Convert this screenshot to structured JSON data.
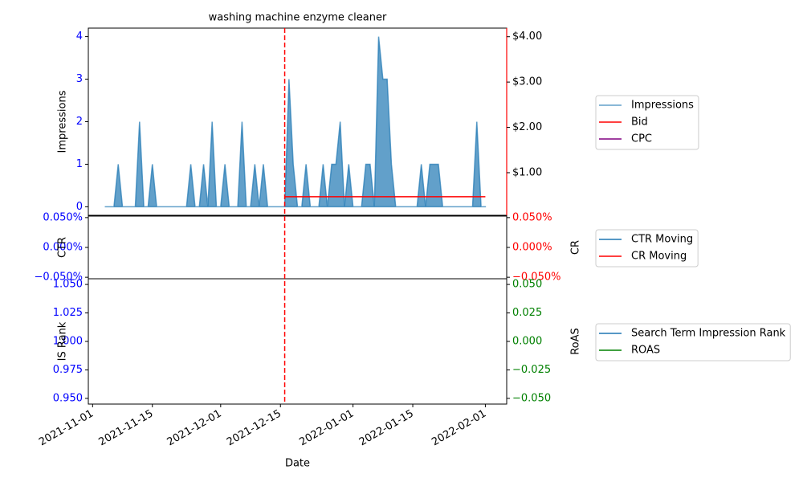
{
  "chart_data": [
    {
      "type": "area",
      "title": "washing machine enzyme cleaner",
      "ylabel": "Impressions",
      "ylim": [
        -0.2,
        4.2
      ],
      "yticks": [
        0,
        1,
        2,
        3,
        4
      ],
      "ytick_color": "blue",
      "y2lim": [
        0.06,
        4.19
      ],
      "y2ticks": [
        {
          "value": 1,
          "label": "$1.00"
        },
        {
          "value": 2,
          "label": "$2.00"
        },
        {
          "value": 3,
          "label": "$3.00"
        },
        {
          "value": 4,
          "label": "$4.00"
        }
      ],
      "y2tick_color": "black",
      "y2_spine_color": "red",
      "legend": "right",
      "series": [
        {
          "name": "Impressions",
          "type": "area",
          "color": "#1f77b4",
          "axis": "y",
          "x": [
            "2021-11-04",
            "2021-11-05",
            "2021-11-06",
            "2021-11-07",
            "2021-11-08",
            "2021-11-09",
            "2021-11-10",
            "2021-11-11",
            "2021-11-12",
            "2021-11-13",
            "2021-11-14",
            "2021-11-15",
            "2021-11-16",
            "2021-11-17",
            "2021-11-18",
            "2021-11-19",
            "2021-11-20",
            "2021-11-21",
            "2021-11-22",
            "2021-11-23",
            "2021-11-24",
            "2021-11-25",
            "2021-11-26",
            "2021-11-27",
            "2021-11-28",
            "2021-11-29",
            "2021-11-30",
            "2021-12-01",
            "2021-12-02",
            "2021-12-03",
            "2021-12-04",
            "2021-12-05",
            "2021-12-06",
            "2021-12-07",
            "2021-12-08",
            "2021-12-09",
            "2021-12-10",
            "2021-12-11",
            "2021-12-12",
            "2021-12-13",
            "2021-12-14",
            "2021-12-15",
            "2021-12-16",
            "2021-12-17",
            "2021-12-18",
            "2021-12-19",
            "2021-12-20",
            "2021-12-21",
            "2021-12-22",
            "2021-12-23",
            "2021-12-24",
            "2021-12-25",
            "2021-12-26",
            "2021-12-27",
            "2021-12-28",
            "2021-12-29",
            "2021-12-30",
            "2021-12-31",
            "2022-01-01",
            "2022-01-02",
            "2022-01-03",
            "2022-01-04",
            "2022-01-05",
            "2022-01-06",
            "2022-01-07",
            "2022-01-08",
            "2022-01-09",
            "2022-01-10",
            "2022-01-11",
            "2022-01-12",
            "2022-01-13",
            "2022-01-14",
            "2022-01-15",
            "2022-01-16",
            "2022-01-17",
            "2022-01-18",
            "2022-01-19",
            "2022-01-20",
            "2022-01-21",
            "2022-01-22",
            "2022-01-23",
            "2022-01-24",
            "2022-01-25",
            "2022-01-26",
            "2022-01-27",
            "2022-01-28",
            "2022-01-29",
            "2022-01-30",
            "2022-01-31",
            "2022-02-01"
          ],
          "values": [
            0,
            0,
            0,
            1,
            0,
            0,
            0,
            0,
            2,
            0,
            0,
            1,
            0,
            0,
            0,
            0,
            0,
            0,
            0,
            0,
            1,
            0,
            0,
            1,
            0,
            2,
            0,
            0,
            1,
            0,
            0,
            0,
            2,
            0,
            0,
            1,
            0,
            1,
            0,
            0,
            0,
            0,
            0,
            3,
            1,
            0,
            0,
            1,
            0,
            0,
            0,
            1,
            0,
            1,
            1,
            2,
            0,
            1,
            0,
            0,
            0,
            1,
            1,
            0,
            4,
            3,
            3,
            1,
            0,
            0,
            0,
            0,
            0,
            0,
            1,
            0,
            1,
            1,
            1,
            0,
            0,
            0,
            0,
            0,
            0,
            0,
            0,
            2,
            0,
            0
          ]
        },
        {
          "name": "Bid",
          "type": "line",
          "color": "red",
          "axis": "y2",
          "x": [
            "2021-12-16",
            "2022-02-01"
          ],
          "values": [
            0.47,
            0.47
          ]
        },
        {
          "name": "CPC",
          "type": "line",
          "color": "purple",
          "axis": "y2",
          "x": [],
          "values": []
        }
      ]
    },
    {
      "type": "line",
      "ylabel": "CTR",
      "y2label": "CR",
      "ylim": [
        -0.0525,
        0.0525
      ],
      "yticks": [
        {
          "value": -0.05,
          "label": "−0.050%"
        },
        {
          "value": 0,
          "label": "0.000%"
        },
        {
          "value": 0.05,
          "label": "0.050%"
        }
      ],
      "ytick_color": "blue",
      "y2lim": [
        -0.0525,
        0.0525
      ],
      "y2ticks": [
        {
          "value": -0.05,
          "label": "−0.050%"
        },
        {
          "value": 0,
          "label": "0.000%"
        },
        {
          "value": 0.05,
          "label": "0.050%"
        }
      ],
      "y2tick_color": "red",
      "legend": "right",
      "series": [
        {
          "name": "CTR Moving",
          "type": "line",
          "color": "#1f77b4",
          "axis": "y",
          "x": [],
          "values": []
        },
        {
          "name": "CR Moving",
          "type": "line",
          "color": "red",
          "axis": "y2",
          "x": [],
          "values": []
        }
      ]
    },
    {
      "type": "line",
      "ylabel": "IS Rank",
      "y2label": "RoAS",
      "ylim": [
        0.945,
        1.055
      ],
      "yticks": [
        {
          "value": 0.95,
          "label": "0.950"
        },
        {
          "value": 0.975,
          "label": "0.975"
        },
        {
          "value": 1,
          "label": "1.000"
        },
        {
          "value": 1.025,
          "label": "1.025"
        },
        {
          "value": 1.05,
          "label": "1.050"
        }
      ],
      "ytick_color": "blue",
      "y2lim": [
        -0.055,
        0.055
      ],
      "y2ticks": [
        {
          "value": -0.05,
          "label": "−0.050"
        },
        {
          "value": -0.025,
          "label": "−0.025"
        },
        {
          "value": 0,
          "label": "0.000"
        },
        {
          "value": 0.025,
          "label": "0.025"
        },
        {
          "value": 0.05,
          "label": "0.050"
        }
      ],
      "y2tick_color": "green",
      "legend": "right",
      "series": [
        {
          "name": "Search Term Impression Rank",
          "type": "line",
          "color": "#1f77b4",
          "axis": "y",
          "x": [],
          "values": []
        },
        {
          "name": "ROAS",
          "type": "line",
          "color": "green",
          "axis": "y2",
          "x": [],
          "values": []
        }
      ]
    }
  ],
  "x_axis": {
    "label": "Date",
    "xlim": [
      "2021-10-31",
      "2022-02-06"
    ],
    "xticks": [
      "2021-11-01",
      "2021-11-15",
      "2021-12-01",
      "2021-12-15",
      "2022-01-01",
      "2022-01-15",
      "2022-02-01"
    ]
  },
  "marker_line": {
    "x": "2021-12-16",
    "color": "red"
  }
}
